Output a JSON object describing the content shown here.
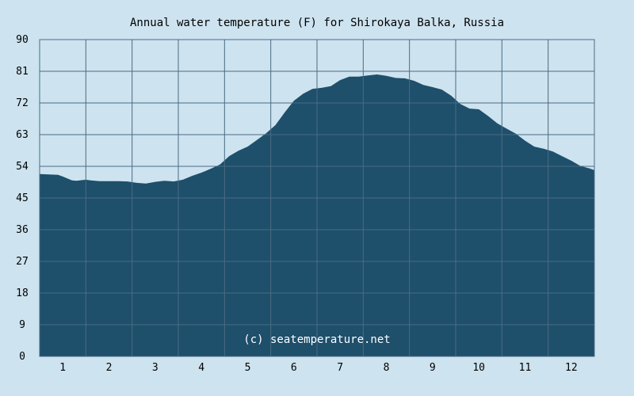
{
  "chart_data": {
    "type": "area",
    "title": "Annual water temperature (F) for Shirokaya Balka, Russia",
    "watermark": "(c) seatemperature.net",
    "xlabel": "",
    "ylabel": "",
    "x_ticks": [
      "1",
      "2",
      "3",
      "4",
      "5",
      "6",
      "7",
      "8",
      "9",
      "10",
      "11",
      "12"
    ],
    "y_ticks": [
      "0",
      "9",
      "18",
      "27",
      "36",
      "45",
      "54",
      "63",
      "72",
      "81",
      "90"
    ],
    "ylim": [
      0,
      90
    ],
    "xlim": [
      0.5,
      12.5
    ],
    "grid": true,
    "colors": {
      "background": "#cde3ef",
      "area_fill": "#1e4f6b",
      "grid": "#4b6b84"
    },
    "series": [
      {
        "x": [
          0.5,
          0.9,
          1.0,
          1.2,
          1.3,
          1.5,
          1.6,
          1.8,
          2.0,
          2.2,
          2.4,
          2.6,
          2.8,
          3.0,
          3.2,
          3.4,
          3.6,
          3.8,
          4.0,
          4.2,
          4.4,
          4.6,
          4.8,
          5.0,
          5.2,
          5.4,
          5.6,
          5.8,
          6.0,
          6.2,
          6.4,
          6.6,
          6.8,
          7.0,
          7.2,
          7.4,
          7.6,
          7.8,
          8.0,
          8.2,
          8.4,
          8.6,
          8.8,
          9.0,
          9.2,
          9.4,
          9.6,
          9.8,
          10.0,
          10.2,
          10.4,
          10.6,
          10.8,
          11.0,
          11.2,
          11.4,
          11.6,
          11.8,
          12.0,
          12.2,
          12.4,
          12.5
        ],
        "y": [
          51.8,
          51.6,
          51.1,
          50.0,
          49.9,
          50.2,
          50.0,
          49.8,
          49.8,
          49.8,
          49.7,
          49.3,
          49.1,
          49.6,
          49.9,
          49.7,
          50.2,
          51.3,
          52.2,
          53.3,
          54.5,
          56.9,
          58.4,
          59.6,
          61.5,
          63.4,
          65.7,
          69.3,
          72.6,
          74.6,
          76.0,
          76.3,
          76.8,
          78.5,
          79.5,
          79.5,
          79.8,
          80.1,
          79.7,
          79.1,
          79.0,
          78.3,
          77.1,
          76.5,
          75.8,
          74.1,
          71.7,
          70.4,
          70.2,
          68.3,
          66.2,
          64.7,
          63.3,
          61.3,
          59.6,
          59.0,
          58.2,
          56.9,
          55.6,
          54.1,
          53.4,
          52.9
        ]
      }
    ]
  }
}
